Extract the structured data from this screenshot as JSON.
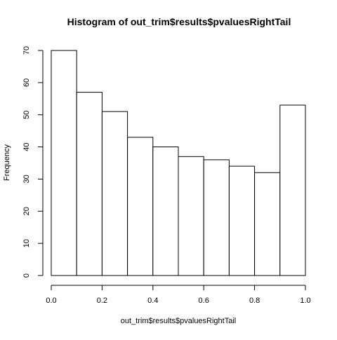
{
  "chart_data": {
    "type": "bar",
    "title": "Histogram of out_trim$results$pvaluesRightTail",
    "xlabel": "out_trim$results$pvaluesRightTail",
    "ylabel": "Frequency",
    "bins": [
      {
        "start": 0.0,
        "end": 0.1,
        "count": 70
      },
      {
        "start": 0.1,
        "end": 0.2,
        "count": 57
      },
      {
        "start": 0.2,
        "end": 0.3,
        "count": 51
      },
      {
        "start": 0.3,
        "end": 0.4,
        "count": 43
      },
      {
        "start": 0.4,
        "end": 0.5,
        "count": 40
      },
      {
        "start": 0.5,
        "end": 0.6,
        "count": 37
      },
      {
        "start": 0.6,
        "end": 0.7,
        "count": 36
      },
      {
        "start": 0.7,
        "end": 0.8,
        "count": 34
      },
      {
        "start": 0.8,
        "end": 0.9,
        "count": 32
      },
      {
        "start": 0.9,
        "end": 1.0,
        "count": 53
      }
    ],
    "xlim": [
      0.0,
      1.0
    ],
    "ylim": [
      0,
      70
    ],
    "x_ticks": [
      "0.0",
      "0.2",
      "0.4",
      "0.6",
      "0.8",
      "1.0"
    ],
    "y_ticks": [
      "0",
      "10",
      "20",
      "30",
      "40",
      "50",
      "60",
      "70"
    ],
    "grid": false,
    "colors": {
      "bar_fill": "#ffffff",
      "bar_stroke": "#000000",
      "background": "#ffffff"
    }
  }
}
